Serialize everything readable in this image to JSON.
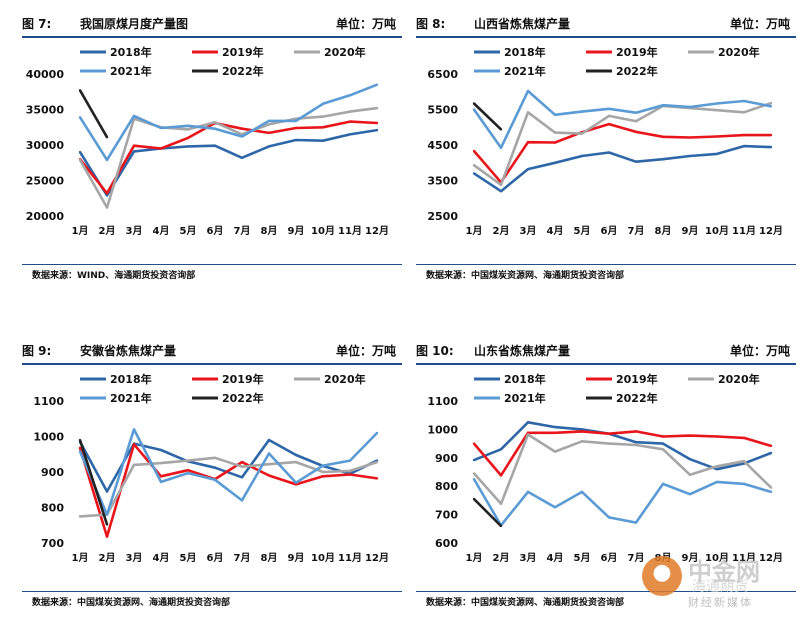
{
  "panels": [
    {
      "fig_label": "图 7:",
      "title": "我国原煤月度产量图",
      "unit": "单位：万吨",
      "source": "数据来源：WIND、海通期货投资咨询部",
      "chart_data": {
        "type": "line",
        "categories": [
          "1月",
          "2月",
          "3月",
          "4月",
          "5月",
          "6月",
          "7月",
          "8月",
          "9月",
          "10月",
          "11月",
          "12月"
        ],
        "ylim": [
          20000,
          40000
        ],
        "yticks": [
          20000,
          25000,
          30000,
          35000,
          40000
        ],
        "series": [
          {
            "name": "2018年",
            "color": "#2e67a8",
            "values": [
              29000,
              22900,
              29100,
              29500,
              29800,
              29900,
              28200,
              29800,
              30700,
              30600,
              31500,
              32100
            ]
          },
          {
            "name": "2019年",
            "color": "#e8151b",
            "values": [
              28000,
              23200,
              29900,
              29500,
              31000,
              33100,
              32300,
              31700,
              32400,
              32500,
              33300,
              33100
            ]
          },
          {
            "name": "2020年",
            "color": "#a6a6a6",
            "values": [
              27900,
              21200,
              33700,
              32500,
              32200,
              33200,
              31500,
              32900,
              33700,
              34000,
              34700,
              35200
            ]
          },
          {
            "name": "2021年",
            "color": "#5b9bd5",
            "values": [
              33900,
              27900,
              34100,
              32400,
              32700,
              32300,
              31200,
              33400,
              33400,
              35800,
              37000,
              38500
            ]
          },
          {
            "name": "2022年",
            "color": "#222222",
            "values": [
              37700,
              31100,
              null,
              null,
              null,
              null,
              null,
              null,
              null,
              null,
              null,
              null
            ]
          }
        ]
      }
    },
    {
      "fig_label": "图 8:",
      "title": "山西省炼焦煤产量",
      "unit": "单位：万吨",
      "source": "数据来源：中国煤炭资源网、海通期货投资咨询部",
      "chart_data": {
        "type": "line",
        "categories": [
          "1月",
          "2月",
          "3月",
          "4月",
          "5月",
          "6月",
          "7月",
          "8月",
          "9月",
          "10月",
          "11月",
          "12月"
        ],
        "ylim": [
          2500,
          6500
        ],
        "yticks": [
          2500,
          3500,
          4500,
          5500,
          6500
        ],
        "series": [
          {
            "name": "2018年",
            "color": "#2e67a8",
            "values": [
              3700,
              3200,
              3820,
              4000,
              4190,
              4290,
              4030,
              4100,
              4190,
              4250,
              4470,
              4440
            ]
          },
          {
            "name": "2019年",
            "color": "#e8151b",
            "values": [
              4330,
              3450,
              4580,
              4570,
              4860,
              5090,
              4870,
              4730,
              4710,
              4740,
              4780,
              4780
            ]
          },
          {
            "name": "2020年",
            "color": "#a6a6a6",
            "values": [
              3930,
              3380,
              5420,
              4850,
              4820,
              5320,
              5170,
              5600,
              5540,
              5480,
              5420,
              5680
            ]
          },
          {
            "name": "2021年",
            "color": "#5b9bd5",
            "values": [
              5500,
              4420,
              6020,
              5350,
              5440,
              5520,
              5410,
              5620,
              5570,
              5670,
              5740,
              5590
            ]
          },
          {
            "name": "2022年",
            "color": "#222222",
            "values": [
              5670,
              4940,
              null,
              null,
              null,
              null,
              null,
              null,
              null,
              null,
              null,
              null
            ]
          }
        ]
      }
    },
    {
      "fig_label": "图 9:",
      "title": "安徽省炼焦煤产量",
      "unit": "单位：万吨",
      "source": "数据来源：中国煤炭资源网、海通期货投资咨询部",
      "chart_data": {
        "type": "line",
        "categories": [
          "1月",
          "2月",
          "3月",
          "4月",
          "5月",
          "6月",
          "7月",
          "8月",
          "9月",
          "10月",
          "11月",
          "12月"
        ],
        "ylim": [
          700,
          1100
        ],
        "yticks": [
          700,
          800,
          900,
          1000,
          1100
        ],
        "series": [
          {
            "name": "2018年",
            "color": "#2e67a8",
            "values": [
              985,
              845,
              980,
              962,
              930,
              912,
              885,
              990,
              948,
              917,
              895,
              932
            ]
          },
          {
            "name": "2019年",
            "color": "#e8151b",
            "values": [
              968,
              718,
              978,
              888,
              905,
              880,
              928,
              890,
              865,
              888,
              893,
              882
            ]
          },
          {
            "name": "2020年",
            "color": "#a6a6a6",
            "values": [
              775,
              780,
              920,
              925,
              932,
              940,
              915,
              922,
              928,
              900,
              903,
              928
            ]
          },
          {
            "name": "2021年",
            "color": "#5b9bd5",
            "values": [
              958,
              780,
              1020,
              872,
              897,
              878,
              820,
              952,
              870,
              918,
              932,
              1010
            ]
          },
          {
            "name": "2022年",
            "color": "#222222",
            "values": [
              990,
              752,
              null,
              null,
              null,
              null,
              null,
              null,
              null,
              null,
              null,
              null
            ]
          }
        ]
      }
    },
    {
      "fig_label": "图 10:",
      "title": "山东省炼焦煤产量",
      "unit": "单位：万吨",
      "source": "数据来源：中国煤炭资源网、海通期货投资咨询部",
      "chart_data": {
        "type": "line",
        "categories": [
          "1月",
          "2月",
          "3月",
          "4月",
          "5月",
          "6月",
          "7月",
          "8月",
          "9月",
          "10月",
          "11月",
          "12月"
        ],
        "ylim": [
          600,
          1100
        ],
        "yticks": [
          600,
          700,
          800,
          900,
          1000,
          1100
        ],
        "series": [
          {
            "name": "2018年",
            "color": "#2e67a8",
            "values": [
              892,
              930,
              1025,
              1008,
              1000,
              985,
              955,
              950,
              895,
              860,
              880,
              917
            ]
          },
          {
            "name": "2019年",
            "color": "#e8151b",
            "values": [
              950,
              838,
              988,
              988,
              993,
              985,
              993,
              975,
              978,
              975,
              970,
              942
            ]
          },
          {
            "name": "2020年",
            "color": "#a6a6a6",
            "values": [
              845,
              738,
              982,
              922,
              958,
              950,
              945,
              930,
              840,
              870,
              888,
              795
            ]
          },
          {
            "name": "2021年",
            "color": "#5b9bd5",
            "values": [
              825,
              662,
              780,
              726,
              780,
              690,
              672,
              808,
              772,
              815,
              808,
              780
            ]
          },
          {
            "name": "2022年",
            "color": "#222222",
            "values": [
              755,
              660,
              null,
              null,
              null,
              null,
              null,
              null,
              null,
              null,
              null,
              null
            ]
          }
        ]
      }
    }
  ],
  "watermark": {
    "logo_glyph": "●",
    "name": "中金网",
    "ghost": "海通期货",
    "sub": "财经新媒体"
  }
}
